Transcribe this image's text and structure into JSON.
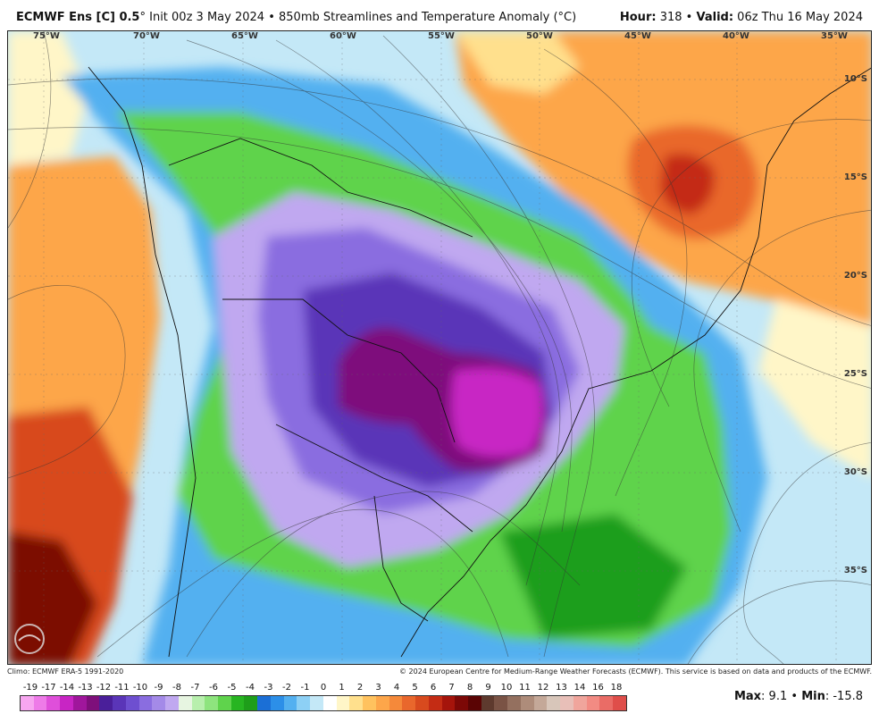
{
  "header": {
    "model": "ECMWF Ens [C] 0.5",
    "deg": "°",
    "init": "Init 00z 3 May 2024",
    "bullet": "•",
    "product": "850mb Streamlines and Temperature Anomaly (°C)",
    "hour_label": "Hour:",
    "hour_value": "318",
    "valid_label": "Valid:",
    "valid_value": "06z Thu 16 May 2024"
  },
  "longitudes": [
    "75°W",
    "70°W",
    "65°W",
    "60°W",
    "55°W",
    "50°W",
    "45°W",
    "40°W",
    "35°W"
  ],
  "latitudes": [
    "10°S",
    "15°S",
    "20°S",
    "25°S",
    "30°S",
    "35°S"
  ],
  "footer": {
    "climo": "Climo: ECMWF ERA-5 1991-2020",
    "copyright": "© 2024 European Centre for Medium-Range Weather Forecasts (ECMWF). This service is based on data and products of the ECMWF."
  },
  "colorbar": {
    "ticks": [
      "-19",
      "-17",
      "-14",
      "-13",
      "-12",
      "-11",
      "-10",
      "-9",
      "-8",
      "-7",
      "-6",
      "-5",
      "-4",
      "-3",
      "-2",
      "-1",
      "0",
      "1",
      "2",
      "3",
      "4",
      "5",
      "6",
      "7",
      "8",
      "9",
      "10",
      "11",
      "12",
      "13",
      "14",
      "16",
      "18"
    ],
    "colors": [
      "#f7a6f0",
      "#ee7be8",
      "#df4fda",
      "#c825c4",
      "#a0169c",
      "#7e0f7b",
      "#4a1f9a",
      "#5a35b8",
      "#6e4fd0",
      "#8a6de0",
      "#a48ae8",
      "#c0a8f0",
      "#e7f5e1",
      "#b8efad",
      "#8ee47e",
      "#5fd34c",
      "#27b521",
      "#1e9e1a",
      "#1b6fd6",
      "#2c8fe8",
      "#53b0f0",
      "#8dd0f5",
      "#c4e8f7",
      "#ffffff",
      "#fff6c8",
      "#ffe08d",
      "#ffc25e",
      "#fda64a",
      "#f5893a",
      "#e9672c",
      "#d84a1e",
      "#c42c14",
      "#a5140b",
      "#7c0806",
      "#5a0404",
      "#5e3a2e",
      "#7a5345",
      "#94705f",
      "#ae8c7a",
      "#c4a898",
      "#d8c6ba",
      "#e8bfb8",
      "#f0a59c",
      "#f28b83",
      "#ea6c66",
      "#df4e4a"
    ]
  },
  "stats": {
    "max_label": "Max",
    "max_value": ": 9.1",
    "min_label": "Min",
    "min_value": ": -15.8"
  }
}
